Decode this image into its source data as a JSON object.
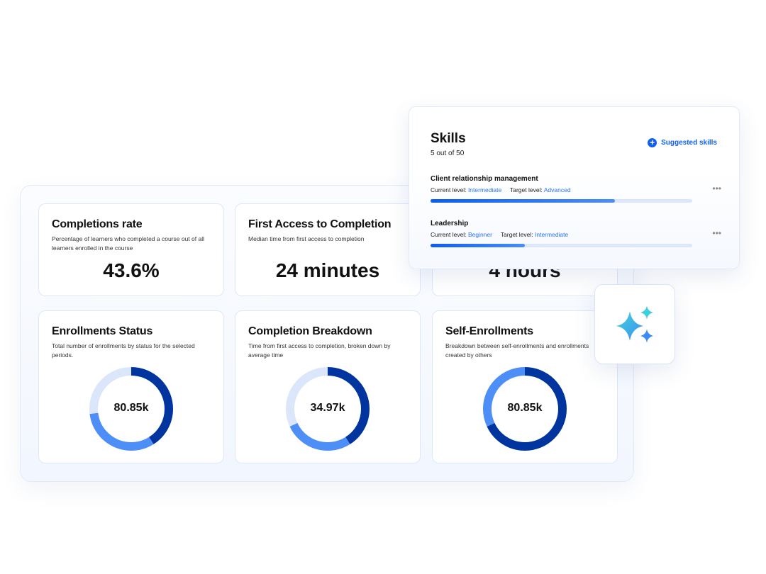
{
  "cards": [
    {
      "title": "Completions rate",
      "desc": "Percentage of learners who completed a course out of all learners enrolled in the course",
      "value": "43.6%"
    },
    {
      "title": "First Access to Completion",
      "desc": "Median time from first access to completion",
      "value": "24 minutes"
    },
    {
      "title": "",
      "desc": "",
      "value": "4 hours"
    }
  ],
  "donuts": [
    {
      "title": "Enrollments Status",
      "desc": "Total number of enrollments by status for the selected periods.",
      "value": "80.85k",
      "segments": [
        0.41,
        0.32,
        0.27
      ]
    },
    {
      "title": "Completion Breakdown",
      "desc": "Time from first access to completion, broken down by average time",
      "value": "34.97k",
      "segments": [
        0.41,
        0.27,
        0.32
      ]
    },
    {
      "title": "Self-Enrollments",
      "desc": "Breakdown between self-enrollments and enrollments created by others",
      "value": "80.85k",
      "segments": [
        0.68,
        0.32
      ]
    }
  ],
  "segment_colors": [
    "#00349f",
    "#4d8ef7",
    "#dbe6fb"
  ],
  "skills": {
    "title": "Skills",
    "count": "5 out of 50",
    "suggested_label": "Suggested skills",
    "items": [
      {
        "name": "Client relationship management",
        "current_label": "Current level:",
        "current": "Intermediate",
        "target_label": "Target level:",
        "target": "Advanced",
        "progress": 0.705,
        "more": "•••"
      },
      {
        "name": "Leadership",
        "current_label": "Current level:",
        "current": "Beginner",
        "target_label": "Target level:",
        "target": "Intermediate",
        "progress": 0.36,
        "more": "•••"
      }
    ]
  },
  "ai_icon": "sparkles-icon"
}
